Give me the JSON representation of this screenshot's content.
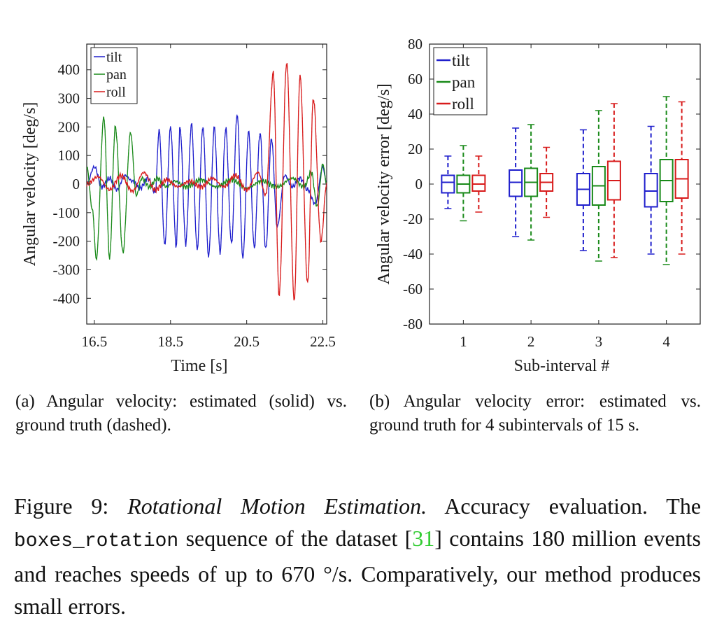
{
  "chart_data": [
    {
      "type": "line",
      "title": "",
      "xlabel": "Time [s]",
      "ylabel": "Angular velocity [deg/s]",
      "xlim": [
        16.3,
        22.6
      ],
      "ylim": [
        -490,
        490
      ],
      "xticks": [
        "16.5",
        "18.5",
        "20.5",
        "22.5"
      ],
      "xtick_values": [
        16.5,
        18.5,
        20.5,
        22.5
      ],
      "yticks": [
        "400",
        "300",
        "200",
        "100",
        "0",
        "-100",
        "-200",
        "-300",
        "-400"
      ],
      "ytick_values": [
        400,
        300,
        200,
        100,
        0,
        -100,
        -200,
        -300,
        -400
      ],
      "grid": false,
      "legend_position": "top-left",
      "colors": {
        "tilt": "#1f1fcc",
        "pan": "#1a8a1a",
        "roll": "#d81b1b"
      },
      "series": [
        {
          "name": "tilt",
          "x": [
            16.3,
            16.5,
            16.7,
            16.9,
            17.1,
            17.3,
            17.5,
            17.7,
            17.9,
            18.1,
            18.2,
            18.35,
            18.5,
            18.65,
            18.75,
            18.9,
            19.05,
            19.2,
            19.35,
            19.5,
            19.65,
            19.8,
            19.95,
            20.1,
            20.25,
            20.4,
            20.55,
            20.7,
            20.85,
            21.0,
            21.15,
            21.3,
            21.5,
            21.7,
            21.9,
            22.1,
            22.3,
            22.5,
            22.6
          ],
          "values": [
            0,
            60,
            -10,
            20,
            -20,
            30,
            10,
            -15,
            20,
            -30,
            190,
            -215,
            200,
            -220,
            200,
            -210,
            210,
            -230,
            200,
            -255,
            200,
            -240,
            195,
            -210,
            245,
            -260,
            185,
            -225,
            180,
            -230,
            160,
            -150,
            30,
            -10,
            20,
            -20,
            -70,
            60,
            0
          ]
        },
        {
          "name": "pan",
          "x": [
            16.3,
            16.45,
            16.55,
            16.75,
            16.9,
            17.05,
            17.25,
            17.45,
            17.6,
            17.75,
            17.95,
            18.15,
            18.4,
            18.6,
            18.9,
            19.3,
            19.7,
            20.1,
            20.5,
            20.9,
            21.3,
            21.7,
            22.0,
            22.2,
            22.35,
            22.5,
            22.6
          ],
          "values": [
            60,
            -90,
            -265,
            235,
            -260,
            200,
            -240,
            180,
            -40,
            20,
            -10,
            20,
            -10,
            10,
            -10,
            15,
            -10,
            15,
            -15,
            10,
            -10,
            20,
            -10,
            40,
            -80,
            70,
            0
          ]
        },
        {
          "name": "roll",
          "x": [
            16.3,
            16.6,
            16.9,
            17.2,
            17.5,
            17.8,
            18.1,
            18.4,
            18.7,
            19.0,
            19.3,
            19.6,
            19.9,
            20.2,
            20.5,
            20.8,
            21.0,
            21.2,
            21.35,
            21.55,
            21.75,
            21.9,
            22.1,
            22.25,
            22.45,
            22.6
          ],
          "values": [
            0,
            25,
            -20,
            30,
            -25,
            40,
            -20,
            15,
            -10,
            10,
            -10,
            20,
            -10,
            30,
            -20,
            40,
            -40,
            390,
            -390,
            425,
            -410,
            380,
            -350,
            300,
            -200,
            0
          ]
        }
      ]
    },
    {
      "type": "box",
      "title": "",
      "xlabel": "Sub-interval #",
      "ylabel": "Angular velocity error [deg/s]",
      "categories": [
        "1",
        "2",
        "3",
        "4"
      ],
      "ylim": [
        -80,
        80
      ],
      "yticks": [
        "80",
        "60",
        "40",
        "20",
        "0",
        "-20",
        "-40",
        "-60",
        "-80"
      ],
      "ytick_values": [
        80,
        60,
        40,
        20,
        0,
        -20,
        -40,
        -60,
        -80
      ],
      "grid": false,
      "legend_position": "top-left",
      "colors": {
        "tilt": "#1f1fcc",
        "pan": "#1a8a1a",
        "roll": "#d81b1b"
      },
      "series": [
        {
          "name": "tilt",
          "boxes": [
            {
              "min": -14,
              "q1": -5,
              "median": 1,
              "q3": 5,
              "max": 16
            },
            {
              "min": -30,
              "q1": -7,
              "median": 1,
              "q3": 8,
              "max": 32
            },
            {
              "min": -38,
              "q1": -12,
              "median": -3,
              "q3": 6,
              "max": 31
            },
            {
              "min": -40,
              "q1": -13,
              "median": -4,
              "q3": 6,
              "max": 33
            }
          ]
        },
        {
          "name": "pan",
          "boxes": [
            {
              "min": -21,
              "q1": -5,
              "median": 0,
              "q3": 5,
              "max": 22
            },
            {
              "min": -32,
              "q1": -7,
              "median": 1,
              "q3": 9,
              "max": 34
            },
            {
              "min": -44,
              "q1": -12,
              "median": -1,
              "q3": 10,
              "max": 42
            },
            {
              "min": -46,
              "q1": -10,
              "median": 2,
              "q3": 14,
              "max": 50
            }
          ]
        },
        {
          "name": "roll",
          "boxes": [
            {
              "min": -16,
              "q1": -4,
              "median": 0,
              "q3": 5,
              "max": 16
            },
            {
              "min": -19,
              "q1": -4,
              "median": 1,
              "q3": 6,
              "max": 21
            },
            {
              "min": -42,
              "q1": -9,
              "median": 2,
              "q3": 13,
              "max": 46
            },
            {
              "min": -40,
              "q1": -8,
              "median": 3,
              "q3": 14,
              "max": 47
            }
          ]
        }
      ]
    }
  ],
  "subcaptions": {
    "a": "(a) Angular velocity: estimated (solid) vs. ground truth (dashed).",
    "b": "(b) Angular velocity error: estimated vs. ground truth for 4 subintervals of 15 s."
  },
  "caption": {
    "label": "Figure 9:",
    "title": "Rotational Motion Estimation.",
    "text1": "Accuracy evaluation. The",
    "sequence": "boxes_rotation",
    "text2": "sequence of the dataset [",
    "citation": "31",
    "text3": "] contains 180 million events and reaches speeds of up to 670 °/s. Comparatively, our method produces small errors."
  }
}
